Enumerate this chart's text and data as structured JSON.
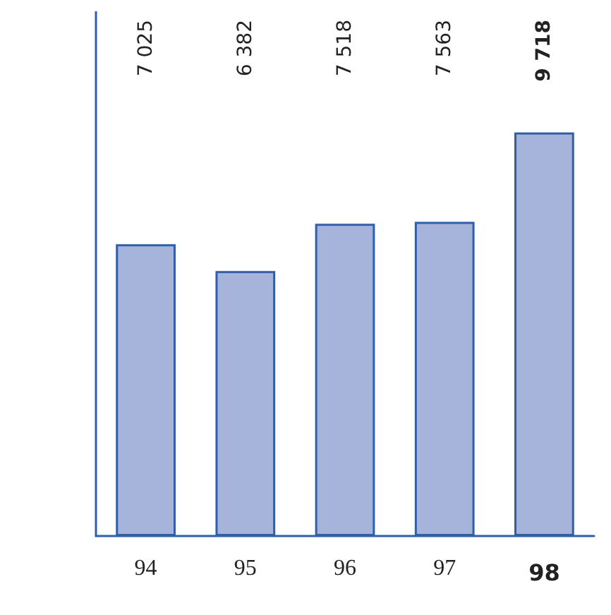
{
  "chart_data": {
    "type": "bar",
    "categories": [
      "94",
      "95",
      "96",
      "97",
      "98"
    ],
    "values": [
      7025,
      6382,
      7518,
      7563,
      9718
    ],
    "value_labels": [
      "7 025",
      "6 382",
      "7 518",
      "7 563",
      "9 718"
    ],
    "color": "#a6b4dc",
    "grid": false
  }
}
